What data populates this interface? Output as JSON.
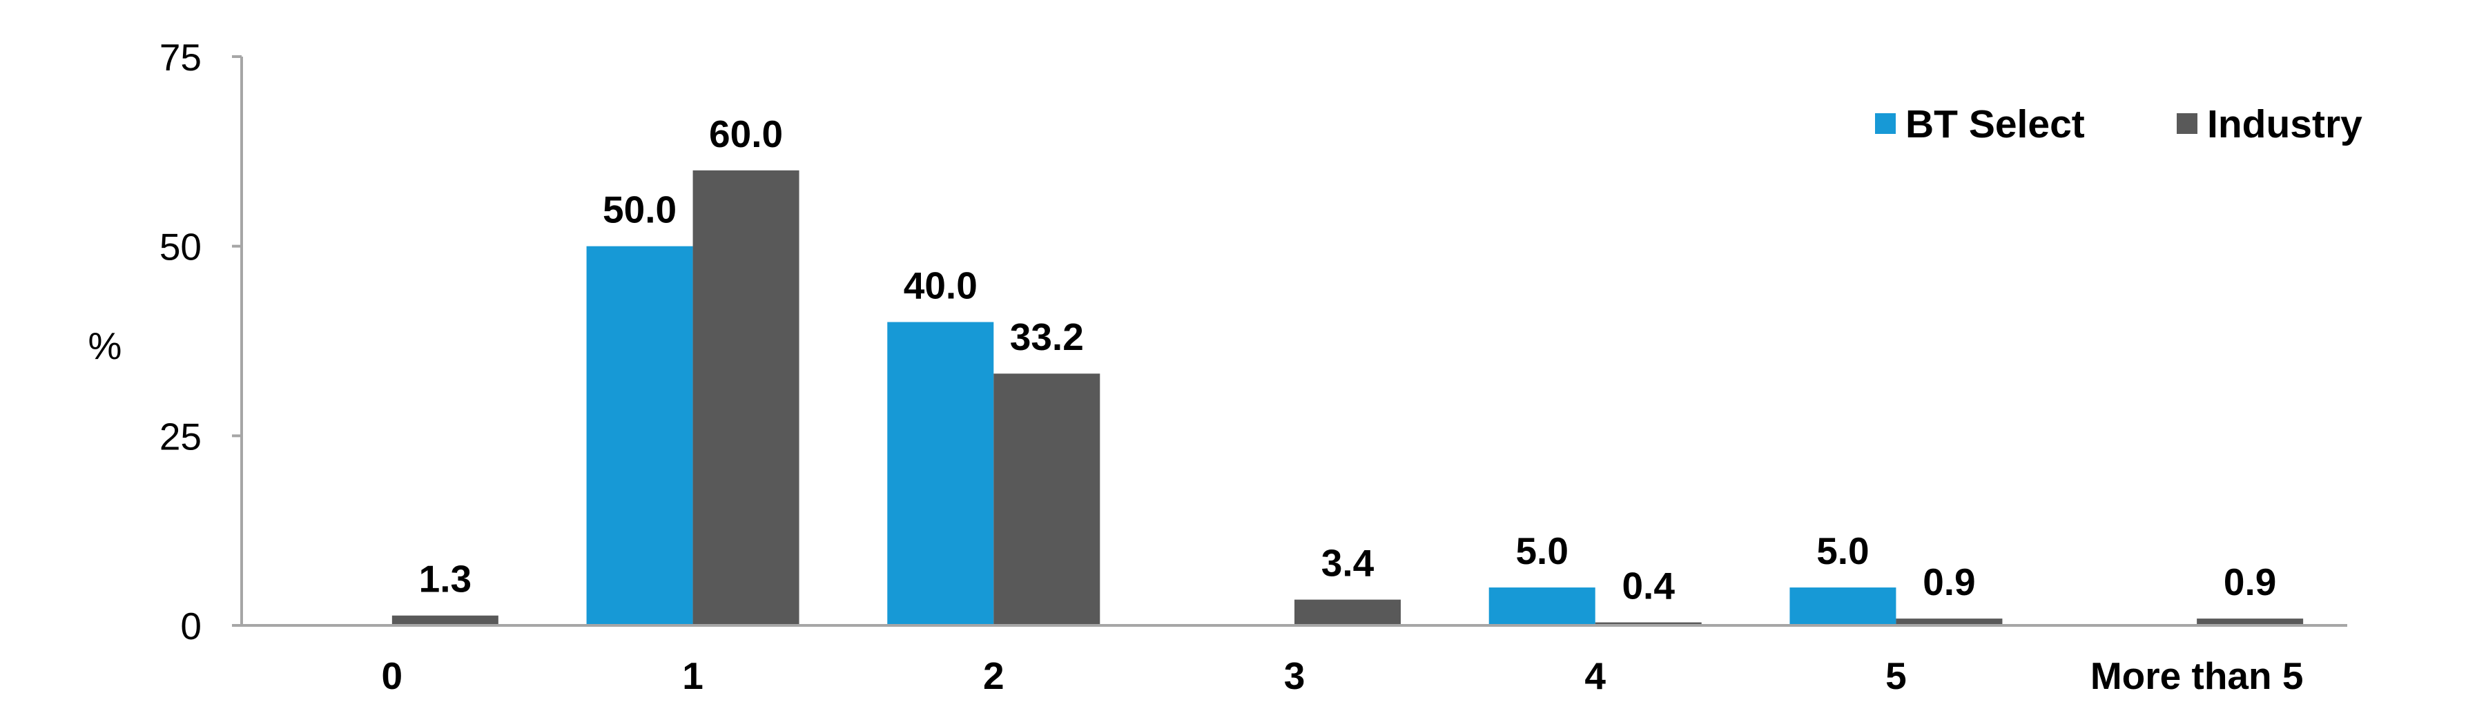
{
  "chart_data": {
    "type": "bar",
    "categories": [
      "0",
      "1",
      "2",
      "3",
      "4",
      "5",
      "More than 5"
    ],
    "series": [
      {
        "name": "BT Select",
        "values": [
          null,
          50.0,
          40.0,
          null,
          5.0,
          5.0,
          null
        ],
        "labels": [
          "",
          "50.0",
          "40.0",
          "",
          "5.0",
          "5.0",
          ""
        ]
      },
      {
        "name": "Industry",
        "values": [
          1.3,
          60.0,
          33.2,
          3.4,
          0.4,
          0.9,
          0.9
        ],
        "labels": [
          "1.3",
          "60.0",
          "33.2",
          "3.4",
          "0.4",
          "0.9",
          "0.9"
        ]
      }
    ],
    "colors": {
      "BT Select": "#1799D6",
      "Industry": "#595959",
      "axis": "#A6A6A6"
    },
    "ylabel": "%",
    "xlabel": "",
    "ylim": [
      0,
      75
    ],
    "yticks": [
      "0",
      "25",
      "50",
      "75"
    ],
    "ytick_values": [
      0,
      25,
      50,
      75
    ],
    "grid": false,
    "legend_position": "top-right",
    "legend": [
      "BT Select",
      "Industry"
    ]
  }
}
